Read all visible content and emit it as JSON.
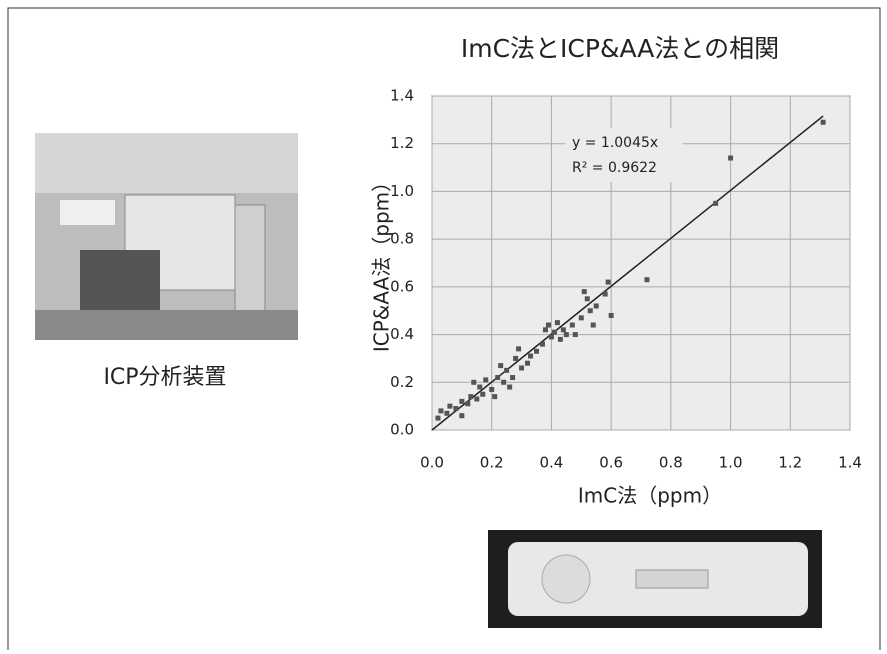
{
  "chart_data": {
    "type": "scatter",
    "title": "ImC法とICP&AA法との相関",
    "x_label": "ImC法（ppm）",
    "y_label": "ICP&AA法（ppm）",
    "xlim": [
      0,
      1.4
    ],
    "ylim": [
      0,
      1.4
    ],
    "xticks": [
      {
        "value": 0,
        "label": "0.0"
      },
      {
        "value": 0.2,
        "label": "0.2"
      },
      {
        "value": 0.4,
        "label": "0.4"
      },
      {
        "value": 0.6,
        "label": "0.6"
      },
      {
        "value": 0.8,
        "label": "0.8"
      },
      {
        "value": 1,
        "label": "1.0"
      },
      {
        "value": 1.2,
        "label": "1.2"
      },
      {
        "value": 1.4,
        "label": "1.4"
      }
    ],
    "yticks": [
      {
        "value": 0,
        "label": "0.0"
      },
      {
        "value": 0.2,
        "label": "0.2"
      },
      {
        "value": 0.4,
        "label": "0.4"
      },
      {
        "value": 0.6,
        "label": "0.6"
      },
      {
        "value": 0.8,
        "label": "0.8"
      },
      {
        "value": 1,
        "label": "1.0"
      },
      {
        "value": 1.2,
        "label": "1.2"
      },
      {
        "value": 1.4,
        "label": "1.4"
      }
    ],
    "grid": true,
    "color": "#555555",
    "x": [
      0.02,
      0.03,
      0.05,
      0.06,
      0.08,
      0.1,
      0.1,
      0.12,
      0.13,
      0.14,
      0.15,
      0.16,
      0.17,
      0.18,
      0.2,
      0.21,
      0.22,
      0.23,
      0.24,
      0.25,
      0.26,
      0.27,
      0.28,
      0.29,
      0.3,
      0.32,
      0.33,
      0.35,
      0.37,
      0.38,
      0.39,
      0.4,
      0.41,
      0.42,
      0.43,
      0.44,
      0.45,
      0.47,
      0.48,
      0.5,
      0.51,
      0.52,
      0.53,
      0.54,
      0.55,
      0.58,
      0.59,
      0.6,
      0.72,
      0.95,
      1.0,
      1.31
    ],
    "y": [
      0.05,
      0.08,
      0.07,
      0.1,
      0.09,
      0.06,
      0.12,
      0.11,
      0.14,
      0.2,
      0.13,
      0.18,
      0.15,
      0.21,
      0.17,
      0.14,
      0.22,
      0.27,
      0.2,
      0.25,
      0.18,
      0.22,
      0.3,
      0.34,
      0.26,
      0.28,
      0.31,
      0.33,
      0.36,
      0.42,
      0.44,
      0.39,
      0.41,
      0.45,
      0.38,
      0.42,
      0.4,
      0.44,
      0.4,
      0.47,
      0.58,
      0.55,
      0.5,
      0.44,
      0.52,
      0.57,
      0.62,
      0.48,
      0.63,
      0.95,
      1.14,
      1.29
    ],
    "trendline": {
      "slope": 1.0045,
      "label": "y = 1.0045x",
      "r2": 0.9622,
      "r2_label": "R² = 0.9622"
    }
  },
  "photo_caption": "ICP分析装置"
}
